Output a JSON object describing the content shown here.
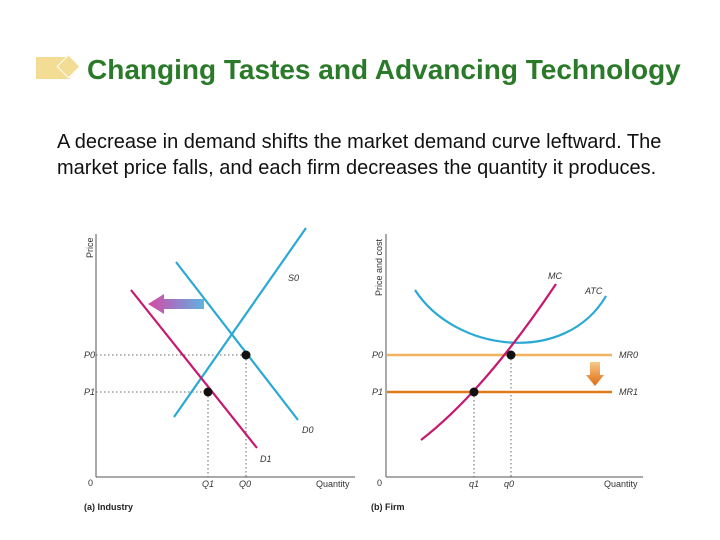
{
  "slide": {
    "title": "Changing Tastes and Advancing Technology",
    "body": "A decrease in demand shifts the market demand curve leftward. The market price falls, and each firm decreases the quantity it produces."
  },
  "industry_graph": {
    "caption": "(a) Industry",
    "y_axis_label": "Price",
    "x_axis_label": "Quantity",
    "origin": "0",
    "price_labels": [
      "P0",
      "P1"
    ],
    "quantity_labels": [
      "Q1",
      "Q0"
    ],
    "curves": [
      "S0",
      "D0",
      "D1"
    ]
  },
  "firm_graph": {
    "caption": "(b) Firm",
    "y_axis_label": "Price and cost",
    "x_axis_label": "Quantity",
    "origin": "0",
    "price_labels": [
      "P0",
      "P1"
    ],
    "quantity_labels": [
      "q1",
      "q0"
    ],
    "curves": [
      "MC",
      "ATC",
      "MR0",
      "MR1"
    ]
  },
  "colors": {
    "title": "#2a7a2a",
    "demand": "#c8176f",
    "supply": "#2aa9d4",
    "mr0": "#f2b35f",
    "mr1": "#e07b17",
    "bullet": "#f3dc93"
  },
  "icons": [
    "bullet-diamond-icon",
    "left-shift-arrow-icon",
    "down-shift-arrow-icon"
  ]
}
